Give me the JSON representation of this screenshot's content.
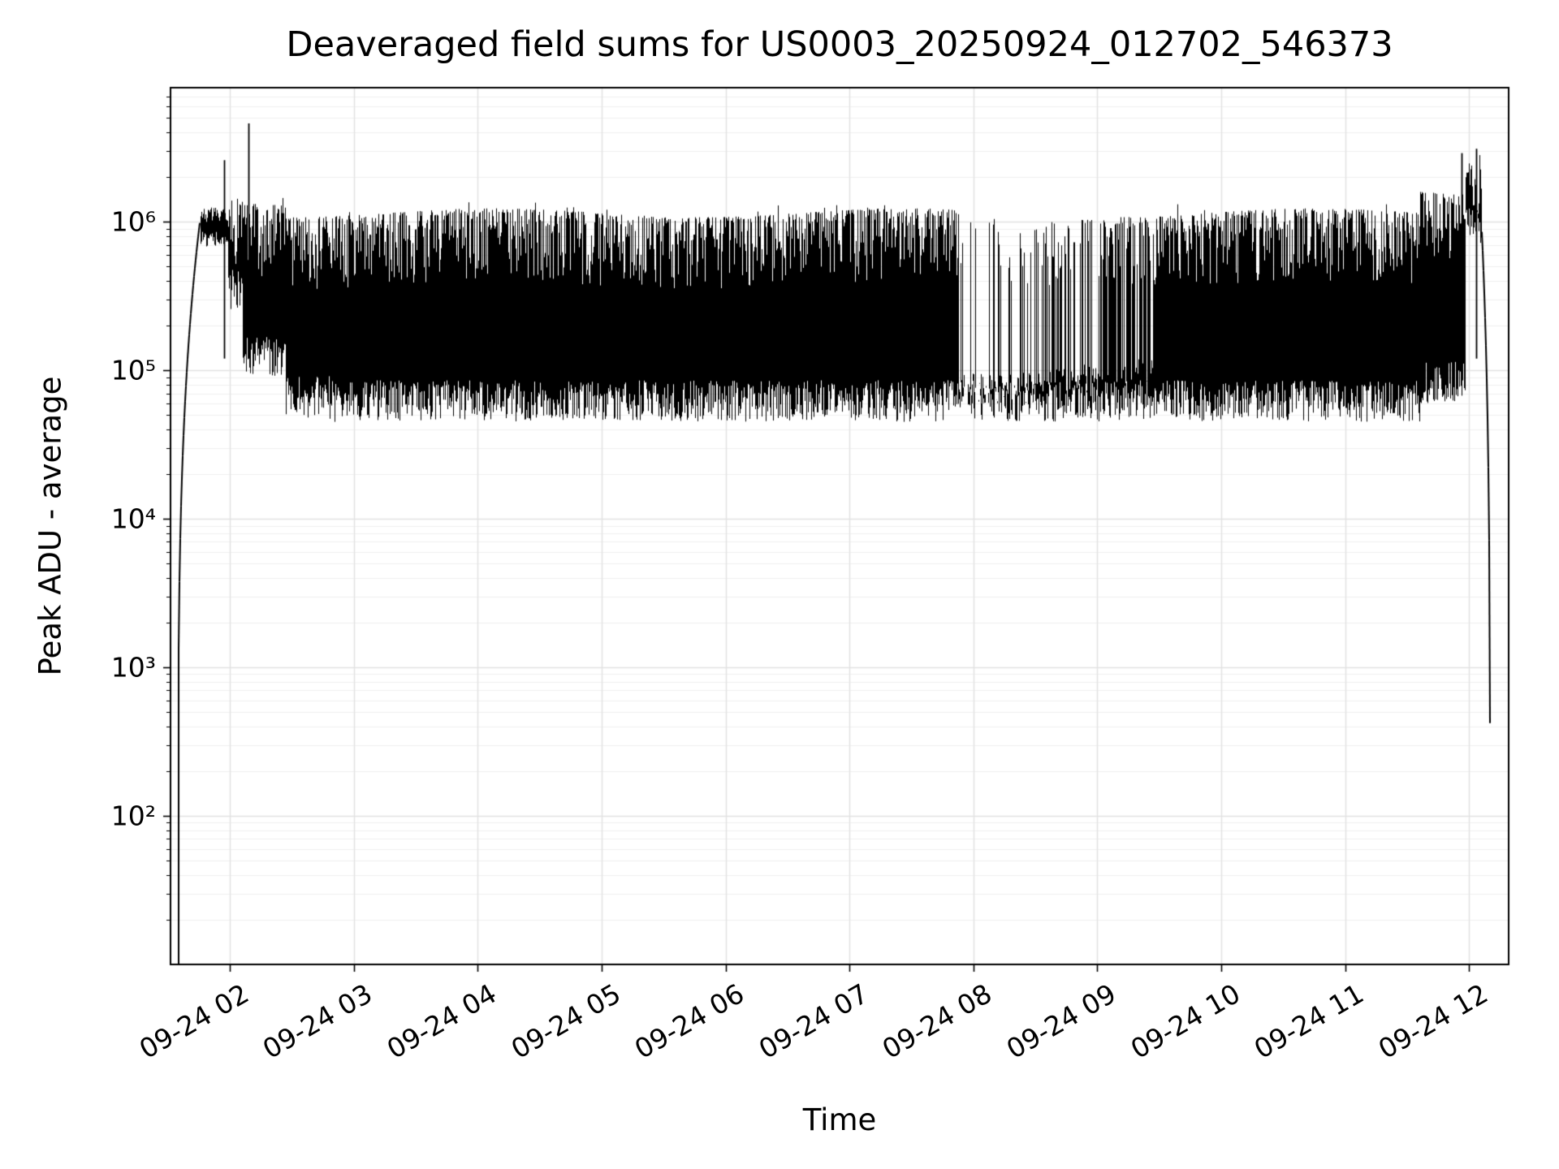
{
  "chart_data": {
    "type": "line",
    "title": "Deaveraged field sums for US0003_20250924_012702_546373",
    "xlabel": "Time",
    "ylabel": "Peak ADU - average",
    "yscale": "log",
    "ylim": [
      10,
      8000000
    ],
    "xlim_hours": [
      1.52,
      12.32
    ],
    "grid": true,
    "line_color": "#000000",
    "grid_minor_color": "#f0f0f0",
    "grid_major_color": "#e2e2e2",
    "noise_seed": 42,
    "x_ticks": [
      {
        "hour": 2,
        "label": "09-24 02"
      },
      {
        "hour": 3,
        "label": "09-24 03"
      },
      {
        "hour": 4,
        "label": "09-24 04"
      },
      {
        "hour": 5,
        "label": "09-24 05"
      },
      {
        "hour": 6,
        "label": "09-24 06"
      },
      {
        "hour": 7,
        "label": "09-24 07"
      },
      {
        "hour": 8,
        "label": "09-24 08"
      },
      {
        "hour": 9,
        "label": "09-24 09"
      },
      {
        "hour": 10,
        "label": "09-24 10"
      },
      {
        "hour": 11,
        "label": "09-24 11"
      },
      {
        "hour": 12,
        "label": "09-24 12"
      }
    ],
    "y_ticks": [
      {
        "value": 100,
        "label": "10²"
      },
      {
        "value": 1000,
        "label": "10³"
      },
      {
        "value": 10000,
        "label": "10⁴"
      },
      {
        "value": 100000,
        "label": "10⁵"
      },
      {
        "value": 1000000,
        "label": "10⁶"
      }
    ],
    "segments": [
      {
        "t0": 1.58,
        "t1": 1.76,
        "mode": "ramp_up",
        "lo": 11,
        "hi": 1050000
      },
      {
        "t0": 1.76,
        "t1": 1.98,
        "mode": "band",
        "lo": 650000,
        "hi": 1250000
      },
      {
        "t0": 1.98,
        "t1": 2.1,
        "mode": "noise",
        "lo": 250000,
        "hi": 1500000,
        "density": 1
      },
      {
        "t0": 2.1,
        "t1": 2.45,
        "mode": "noise",
        "lo": 90000,
        "hi": 1400000,
        "density": 1
      },
      {
        "t0": 2.45,
        "t1": 2.8,
        "mode": "noise",
        "lo": 48000,
        "hi": 1150000,
        "density": 1
      },
      {
        "t0": 2.8,
        "t1": 7.88,
        "mode": "noise",
        "lo": 45000,
        "hi": 1150000,
        "density": 1
      },
      {
        "t0": 7.88,
        "t1": 8.55,
        "mode": "noise",
        "lo": 45000,
        "hi": 1050000,
        "density": 0.18,
        "base_hi": 75000
      },
      {
        "t0": 8.55,
        "t1": 9.05,
        "mode": "noise",
        "lo": 45000,
        "hi": 1100000,
        "density": 0.45,
        "base_hi": 85000
      },
      {
        "t0": 9.05,
        "t1": 9.45,
        "mode": "noise",
        "lo": 45000,
        "hi": 1150000,
        "density": 0.8,
        "base_hi": 95000
      },
      {
        "t0": 9.45,
        "t1": 11.6,
        "mode": "noise",
        "lo": 45000,
        "hi": 1150000,
        "density": 1
      },
      {
        "t0": 11.6,
        "t1": 11.97,
        "mode": "noise",
        "lo": 60000,
        "hi": 1600000,
        "density": 1
      },
      {
        "t0": 11.97,
        "t1": 12.1,
        "mode": "noise",
        "lo": 700000,
        "hi": 2600000,
        "density": 1
      },
      {
        "t0": 12.1,
        "t1": 12.17,
        "mode": "ramp_down",
        "lo": 11,
        "hi": 1000000
      }
    ],
    "spikes": [
      {
        "t": 1.955,
        "v": 2600000
      },
      {
        "t": 2.15,
        "v": 4600000
      },
      {
        "t": 11.94,
        "v": 2900000
      },
      {
        "t": 12.06,
        "v": 3100000
      }
    ],
    "gaps": [
      [
        7.935,
        7.955
      ],
      [
        8.02,
        8.04
      ],
      [
        8.1,
        8.115
      ],
      [
        8.31,
        8.325
      ]
    ]
  }
}
